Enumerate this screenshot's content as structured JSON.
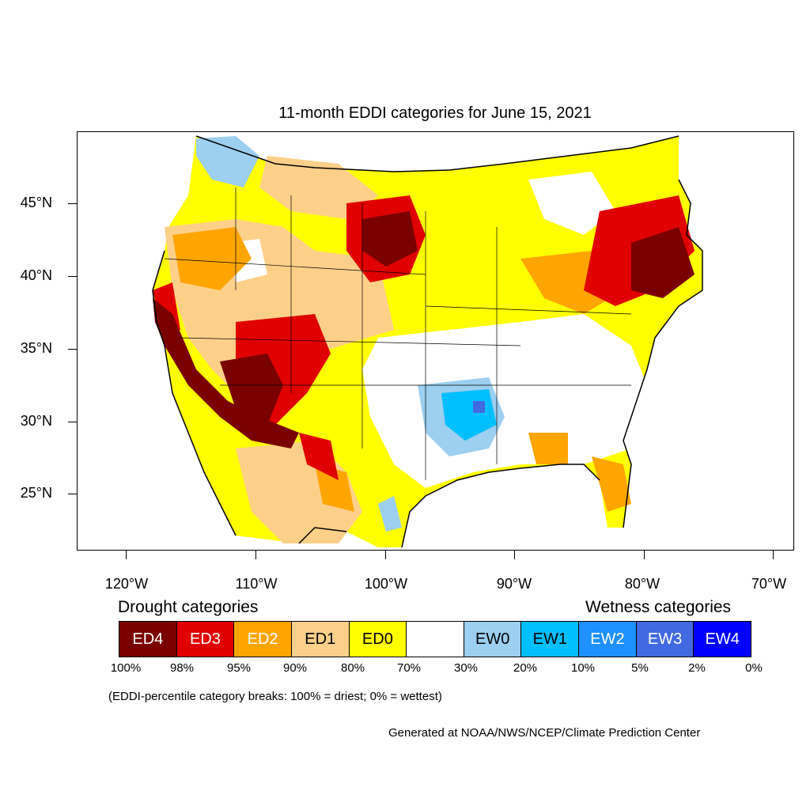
{
  "title": "11-month EDDI categories for June 15, 2021",
  "axes": {
    "y_ticks": [
      "45°N",
      "40°N",
      "35°N",
      "30°N",
      "25°N"
    ],
    "x_ticks": [
      "120°W",
      "110°W",
      "100°W",
      "90°W",
      "80°W",
      "70°W"
    ]
  },
  "legend": {
    "drought_heading": "Drought categories",
    "wetness_heading": "Wetness categories",
    "categories": [
      {
        "label": "ED4",
        "color": "#7a0000",
        "text_color": "#ffffff"
      },
      {
        "label": "ED3",
        "color": "#e00000",
        "text_color": "#ffffff"
      },
      {
        "label": "ED2",
        "color": "#ffa500",
        "text_color": "#ffffff"
      },
      {
        "label": "ED1",
        "color": "#fdd08a",
        "text_color": "#000000"
      },
      {
        "label": "ED0",
        "color": "#ffff00",
        "text_color": "#000000"
      },
      {
        "label": "",
        "color": "#ffffff",
        "text_color": "#000000"
      },
      {
        "label": "EW0",
        "color": "#9ccff0",
        "text_color": "#000000"
      },
      {
        "label": "EW1",
        "color": "#00bfff",
        "text_color": "#000000"
      },
      {
        "label": "EW2",
        "color": "#1e90ff",
        "text_color": "#ffffff"
      },
      {
        "label": "EW3",
        "color": "#4169e1",
        "text_color": "#ffffff"
      },
      {
        "label": "EW4",
        "color": "#0000ff",
        "text_color": "#ffffff"
      }
    ],
    "breaks": [
      "100%",
      "98%",
      "95%",
      "90%",
      "80%",
      "70%",
      "30%",
      "20%",
      "10%",
      "5%",
      "2%",
      "0%"
    ]
  },
  "note": "(EDDI-percentile category breaks: 100% = driest; 0% = wettest)",
  "credit": "Generated at NOAA/NWS/NCEP/Climate Prediction Center"
}
